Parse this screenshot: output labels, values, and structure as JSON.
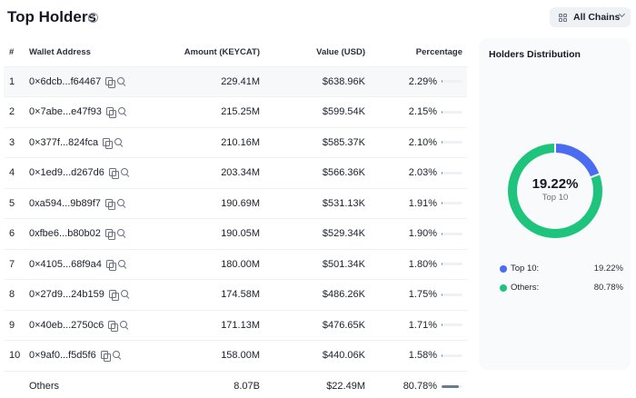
{
  "header": {
    "title": "Top Holders",
    "chains_button": "All Chains"
  },
  "table": {
    "columns": [
      "#",
      "Wallet Address",
      "Amount (KEYCAT)",
      "Value (USD)",
      "Percentage"
    ],
    "rows": [
      {
        "rank": "1",
        "wallet": "0×6dcb...f64467",
        "amount": "229.41M",
        "value": "$638.96K",
        "percentage": "2.29%",
        "bar_fraction": 0.04
      },
      {
        "rank": "2",
        "wallet": "0×7abe...e47f93",
        "amount": "215.25M",
        "value": "$599.54K",
        "percentage": "2.15%",
        "bar_fraction": 0.04
      },
      {
        "rank": "3",
        "wallet": "0×377f...824fca",
        "amount": "210.16M",
        "value": "$585.37K",
        "percentage": "2.10%",
        "bar_fraction": 0.04
      },
      {
        "rank": "4",
        "wallet": "0×1ed9...d267d6",
        "amount": "203.34M",
        "value": "$566.36K",
        "percentage": "2.03%",
        "bar_fraction": 0.04
      },
      {
        "rank": "5",
        "wallet": "0xa594...9b89f7",
        "amount": "190.69M",
        "value": "$531.13K",
        "percentage": "1.91%",
        "bar_fraction": 0.04
      },
      {
        "rank": "6",
        "wallet": "0xfbe6...b80b02",
        "amount": "190.05M",
        "value": "$529.34K",
        "percentage": "1.90%",
        "bar_fraction": 0.04
      },
      {
        "rank": "7",
        "wallet": "0×4105...68f9a4",
        "amount": "180.00M",
        "value": "$501.34K",
        "percentage": "1.80%",
        "bar_fraction": 0.04
      },
      {
        "rank": "8",
        "wallet": "0×27d9...24b159",
        "amount": "174.58M",
        "value": "$486.26K",
        "percentage": "1.75%",
        "bar_fraction": 0.04
      },
      {
        "rank": "9",
        "wallet": "0×40eb...2750c6",
        "amount": "171.13M",
        "value": "$476.65K",
        "percentage": "1.71%",
        "bar_fraction": 0.04
      },
      {
        "rank": "10",
        "wallet": "0×9af0...f5d5f6",
        "amount": "158.00M",
        "value": "$440.06K",
        "percentage": "1.58%",
        "bar_fraction": 0.04
      }
    ],
    "others": {
      "label": "Others",
      "amount": "8.07B",
      "value": "$22.49M",
      "percentage": "80.78%",
      "bar_fraction": 0.8078
    }
  },
  "distribution": {
    "title": "Holders Distribution",
    "center_value": "19.22%",
    "center_label": "Top 10",
    "segments": [
      {
        "name": "Top 10:",
        "display": "19.22%",
        "value": 19.22,
        "color": "#4b6cf0"
      },
      {
        "name": "Others:",
        "display": "80.78%",
        "value": 80.78,
        "color": "#1ec47c"
      }
    ]
  },
  "colors": {
    "bar_fill": "#6b7a90",
    "bar_track": "#eff2f5",
    "row_highlight": "#f6f8fa",
    "icon": "#6b7180"
  },
  "icons": {
    "title_info": "info-icon",
    "chains": "grid-icon",
    "chains_caret": "chevron-down-icon",
    "wallet_copy": "copy-icon",
    "wallet_search": "search-icon"
  }
}
